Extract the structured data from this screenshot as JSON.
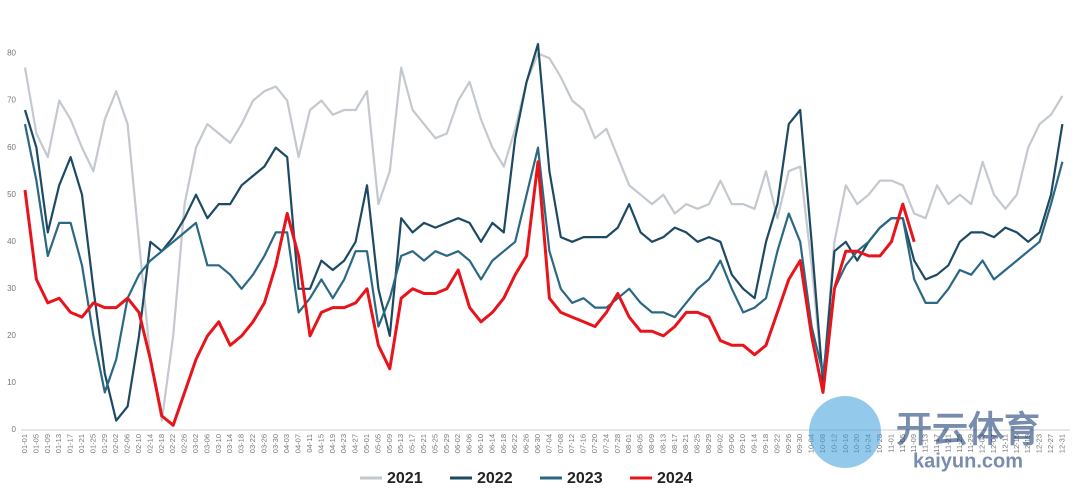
{
  "chart_data": {
    "type": "line",
    "categories": [
      "01-01",
      "01-05",
      "01-09",
      "01-13",
      "01-17",
      "01-21",
      "01-25",
      "01-29",
      "02-02",
      "02-06",
      "02-10",
      "02-14",
      "02-18",
      "02-22",
      "02-26",
      "03-02",
      "03-06",
      "03-10",
      "03-14",
      "03-18",
      "03-22",
      "03-26",
      "03-30",
      "04-03",
      "04-07",
      "04-11",
      "04-15",
      "04-19",
      "04-23",
      "04-27",
      "05-01",
      "05-05",
      "05-09",
      "05-13",
      "05-17",
      "05-21",
      "05-25",
      "05-29",
      "06-02",
      "06-06",
      "06-10",
      "06-14",
      "06-18",
      "06-22",
      "06-26",
      "06-30",
      "07-04",
      "07-08",
      "07-12",
      "07-16",
      "07-20",
      "07-24",
      "07-28",
      "08-01",
      "08-05",
      "08-09",
      "08-13",
      "08-17",
      "08-21",
      "08-25",
      "08-29",
      "09-02",
      "09-06",
      "09-10",
      "09-14",
      "09-18",
      "09-22",
      "09-26",
      "09-30",
      "10-04",
      "10-08",
      "10-12",
      "10-16",
      "10-20",
      "10-24",
      "10-28",
      "11-01",
      "11-05",
      "11-09",
      "11-13",
      "11-17",
      "11-21",
      "11-25",
      "11-29",
      "12-03",
      "12-07",
      "12-11",
      "12-15",
      "12-19",
      "12-23",
      "12-27",
      "12-31"
    ],
    "series": [
      {
        "name": "2021",
        "color": "#c3c9cf",
        "values": [
          77,
          63,
          58,
          70,
          66,
          60,
          55,
          66,
          72,
          65,
          40,
          15,
          2,
          20,
          48,
          60,
          65,
          63,
          61,
          65,
          70,
          72,
          73,
          70,
          58,
          68,
          70,
          67,
          68,
          68,
          72,
          48,
          55,
          77,
          68,
          65,
          62,
          63,
          70,
          74,
          66,
          60,
          56,
          64,
          74,
          80,
          79,
          75,
          70,
          68,
          62,
          64,
          58,
          52,
          50,
          48,
          50,
          46,
          48,
          47,
          48,
          53,
          48,
          48,
          47,
          55,
          45,
          55,
          56,
          35,
          10,
          40,
          52,
          48,
          50,
          53,
          53,
          52,
          46,
          45,
          52,
          48,
          50,
          48,
          57,
          50,
          47,
          50,
          60,
          65,
          67,
          71
        ]
      },
      {
        "name": "2022",
        "color": "#1d4a63",
        "values": [
          68,
          60,
          42,
          52,
          58,
          50,
          30,
          12,
          2,
          5,
          20,
          40,
          38,
          41,
          45,
          50,
          45,
          48,
          48,
          52,
          54,
          56,
          60,
          58,
          30,
          30,
          36,
          34,
          36,
          40,
          52,
          30,
          20,
          45,
          42,
          44,
          43,
          44,
          45,
          44,
          40,
          44,
          42,
          62,
          74,
          82,
          55,
          41,
          40,
          41,
          41,
          41,
          43,
          48,
          42,
          40,
          41,
          43,
          42,
          40,
          41,
          40,
          33,
          30,
          28,
          40,
          48,
          65,
          68,
          40,
          10,
          38,
          40,
          36,
          40,
          43,
          45,
          45,
          36,
          32,
          33,
          35,
          40,
          42,
          42,
          41,
          43,
          42,
          40,
          42,
          50,
          65
        ]
      },
      {
        "name": "2023",
        "color": "#2b6883",
        "values": [
          65,
          53,
          37,
          44,
          44,
          35,
          20,
          8,
          15,
          28,
          33,
          36,
          38,
          40,
          42,
          44,
          35,
          35,
          33,
          30,
          33,
          37,
          42,
          42,
          25,
          28,
          32,
          28,
          32,
          38,
          38,
          22,
          28,
          37,
          38,
          36,
          38,
          37,
          38,
          36,
          32,
          36,
          38,
          40,
          50,
          60,
          38,
          30,
          27,
          28,
          26,
          26,
          28,
          30,
          27,
          25,
          25,
          24,
          27,
          30,
          32,
          36,
          30,
          25,
          26,
          28,
          38,
          46,
          40,
          22,
          12,
          30,
          35,
          38,
          40,
          43,
          45,
          45,
          32,
          27,
          27,
          30,
          34,
          33,
          36,
          32,
          34,
          36,
          38,
          40,
          48,
          57
        ]
      },
      {
        "name": "2024",
        "color": "#e8141b",
        "values": [
          51,
          32,
          27,
          28,
          25,
          24,
          27,
          26,
          26,
          28,
          25,
          15,
          3,
          1,
          8,
          15,
          20,
          23,
          18,
          20,
          23,
          27,
          35,
          46,
          37,
          20,
          25,
          26,
          26,
          27,
          30,
          18,
          13,
          28,
          30,
          29,
          29,
          30,
          34,
          26,
          23,
          25,
          28,
          33,
          37,
          57,
          28,
          25,
          24,
          23,
          22,
          25,
          29,
          24,
          21,
          21,
          20,
          22,
          25,
          25,
          24,
          19,
          18,
          18,
          16,
          18,
          25,
          32,
          36,
          20,
          8,
          30,
          38,
          38,
          37,
          37,
          40,
          48,
          40,
          null,
          null,
          null,
          null,
          null,
          null,
          null,
          null,
          null,
          null,
          null,
          null,
          null
        ]
      }
    ],
    "ylim": [
      0,
      85
    ],
    "yticks": [
      0,
      10,
      20,
      30,
      40,
      50,
      60,
      70,
      80
    ],
    "grid": false,
    "legend": "bottom",
    "watermark": {
      "brand": "开云体育",
      "url": "kaiyun.com"
    }
  }
}
